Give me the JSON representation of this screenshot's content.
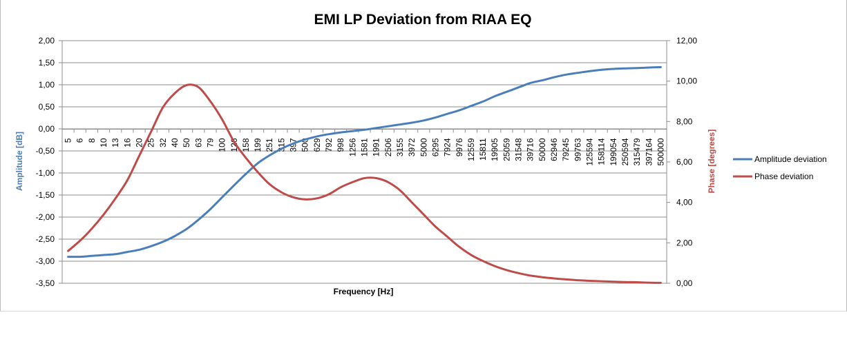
{
  "chart_data": {
    "type": "line",
    "title": "EMI LP Deviation from RIAA EQ",
    "xlabel": "Frequency [Hz]",
    "ylabel": "Amplitude [dB]",
    "y2label": "Phase [degrees]",
    "ylim": [
      -3.5,
      2.0
    ],
    "y2lim": [
      0,
      12
    ],
    "yticks": [
      "2,00",
      "1,50",
      "1,00",
      "0,50",
      "0,00",
      "-0,50",
      "-1,00",
      "-1,50",
      "-2,00",
      "-2,50",
      "-3,00",
      "-3,50"
    ],
    "y2ticks": [
      "12,00",
      "10,00",
      "8,00",
      "6,00",
      "4,00",
      "2,00",
      "0,00"
    ],
    "categories": [
      "5",
      "6",
      "8",
      "10",
      "13",
      "16",
      "20",
      "25",
      "32",
      "40",
      "50",
      "63",
      "79",
      "100",
      "126",
      "158",
      "199",
      "251",
      "315",
      "397",
      "500",
      "629",
      "792",
      "998",
      "1256",
      "1581",
      "1991",
      "2506",
      "3155",
      "3972",
      "5000",
      "6295",
      "7924",
      "9976",
      "12559",
      "15811",
      "19905",
      "25059",
      "31548",
      "39716",
      "50000",
      "62946",
      "79245",
      "99763",
      "125594",
      "158114",
      "199054",
      "250594",
      "315479",
      "397164",
      "500000"
    ],
    "legend_position": "right",
    "grid": true,
    "series": [
      {
        "name": "Amplitude deviation",
        "axis": "left",
        "color": "#4a7ebb",
        "values": [
          -2.9,
          -2.9,
          -2.88,
          -2.86,
          -2.84,
          -2.79,
          -2.74,
          -2.66,
          -2.56,
          -2.43,
          -2.27,
          -2.06,
          -1.82,
          -1.55,
          -1.28,
          -1.02,
          -0.78,
          -0.6,
          -0.45,
          -0.33,
          -0.24,
          -0.17,
          -0.12,
          -0.08,
          -0.05,
          -0.02,
          0.02,
          0.06,
          0.1,
          0.14,
          0.19,
          0.26,
          0.34,
          0.42,
          0.52,
          0.62,
          0.74,
          0.84,
          0.94,
          1.04,
          1.1,
          1.17,
          1.23,
          1.27,
          1.31,
          1.34,
          1.36,
          1.37,
          1.38,
          1.39,
          1.4
        ]
      },
      {
        "name": "Phase deviation",
        "axis": "right",
        "color": "#be4b48",
        "values": [
          1.6,
          2.1,
          2.7,
          3.4,
          4.2,
          5.1,
          6.3,
          7.5,
          8.7,
          9.4,
          9.8,
          9.7,
          9.0,
          8.1,
          7.0,
          6.2,
          5.5,
          4.9,
          4.5,
          4.25,
          4.15,
          4.2,
          4.4,
          4.75,
          5.0,
          5.2,
          5.2,
          5.0,
          4.6,
          4.0,
          3.4,
          2.8,
          2.3,
          1.8,
          1.4,
          1.1,
          0.85,
          0.65,
          0.5,
          0.38,
          0.3,
          0.24,
          0.19,
          0.15,
          0.12,
          0.1,
          0.08,
          0.06,
          0.05,
          0.03,
          0.02
        ]
      }
    ]
  }
}
